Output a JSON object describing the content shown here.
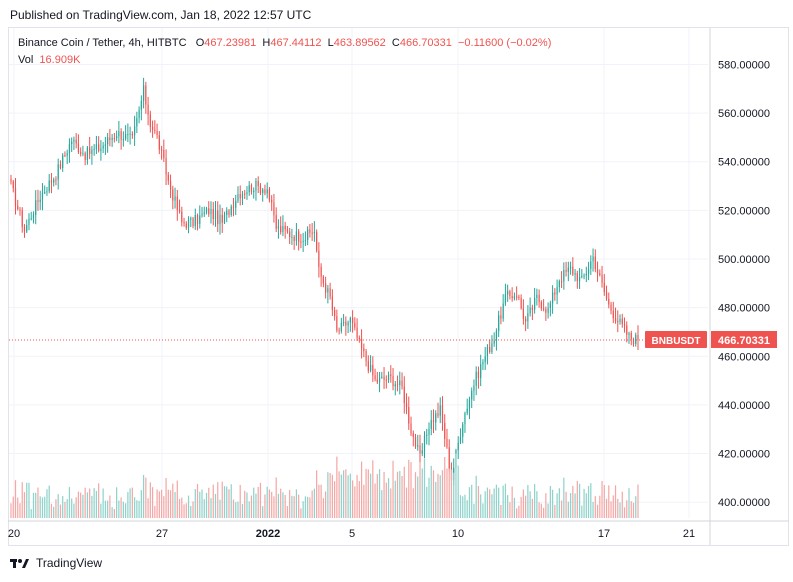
{
  "published": "Published on TradingView.com, Jan 18, 2022 12:57 UTC",
  "legend": {
    "symbol": "Binance Coin / Tether, 4h, HITBTC",
    "o_label": "O",
    "o_value": "467.23981",
    "h_label": "H",
    "h_value": "467.44112",
    "l_label": "L",
    "l_value": "463.89562",
    "c_label": "C",
    "c_value": "466.70331",
    "change": "−0.11600 (−0.02%)",
    "vol_label": "Vol",
    "vol_value": "16.909K"
  },
  "footer": {
    "brand": "TradingView",
    "logo_icon": "tradingview-logo-icon"
  },
  "colors": {
    "up": "#26a69a",
    "down": "#ef5350",
    "up_vol": "#8fd3cb",
    "down_vol": "#f4a8a6",
    "grid": "#f0f3fa"
  },
  "chart_data": {
    "type": "candlestick",
    "symbol": "BNBUSDT",
    "timeframe": "4h",
    "exchange": "HITBTC",
    "last_price": "466.70331",
    "last_label": "BNBUSDT",
    "y_ticks": [
      "580.00000",
      "560.00000",
      "540.00000",
      "520.00000",
      "500.00000",
      "480.00000",
      "460.00000",
      "440.00000",
      "420.00000",
      "400.00000"
    ],
    "ylim": [
      393.5,
      595
    ],
    "x_ticks": [
      "20",
      "27",
      "2022",
      "5",
      "10",
      "17",
      "21"
    ],
    "grid": true,
    "close_anchors": [
      [
        0,
        530
      ],
      [
        6,
        512
      ],
      [
        13,
        526
      ],
      [
        20,
        535
      ],
      [
        27,
        549
      ],
      [
        33,
        543
      ],
      [
        40,
        546
      ],
      [
        47,
        552
      ],
      [
        54,
        549
      ],
      [
        59,
        569
      ],
      [
        62,
        556
      ],
      [
        65,
        550
      ],
      [
        70,
        532
      ],
      [
        76,
        515
      ],
      [
        81,
        515
      ],
      [
        88,
        520
      ],
      [
        94,
        515
      ],
      [
        101,
        527
      ],
      [
        108,
        530
      ],
      [
        114,
        529
      ],
      [
        118,
        513
      ],
      [
        125,
        510
      ],
      [
        131,
        509
      ],
      [
        135,
        512
      ],
      [
        137,
        495
      ],
      [
        142,
        484
      ],
      [
        145,
        470
      ],
      [
        151,
        475
      ],
      [
        155,
        465
      ],
      [
        162,
        450
      ],
      [
        169,
        451
      ],
      [
        174,
        447
      ],
      [
        178,
        430
      ],
      [
        182,
        418
      ],
      [
        186,
        432
      ],
      [
        191,
        438
      ],
      [
        196,
        410
      ],
      [
        201,
        434
      ],
      [
        206,
        449
      ],
      [
        210,
        458
      ],
      [
        215,
        468
      ],
      [
        220,
        484
      ],
      [
        225,
        486
      ],
      [
        229,
        474
      ],
      [
        234,
        484
      ],
      [
        239,
        479
      ],
      [
        244,
        492
      ],
      [
        249,
        496
      ],
      [
        254,
        491
      ],
      [
        259,
        501
      ],
      [
        262,
        492
      ],
      [
        266,
        481
      ],
      [
        270,
        475
      ],
      [
        275,
        468
      ],
      [
        279,
        466.70331
      ]
    ],
    "wick_seed": 17
  }
}
